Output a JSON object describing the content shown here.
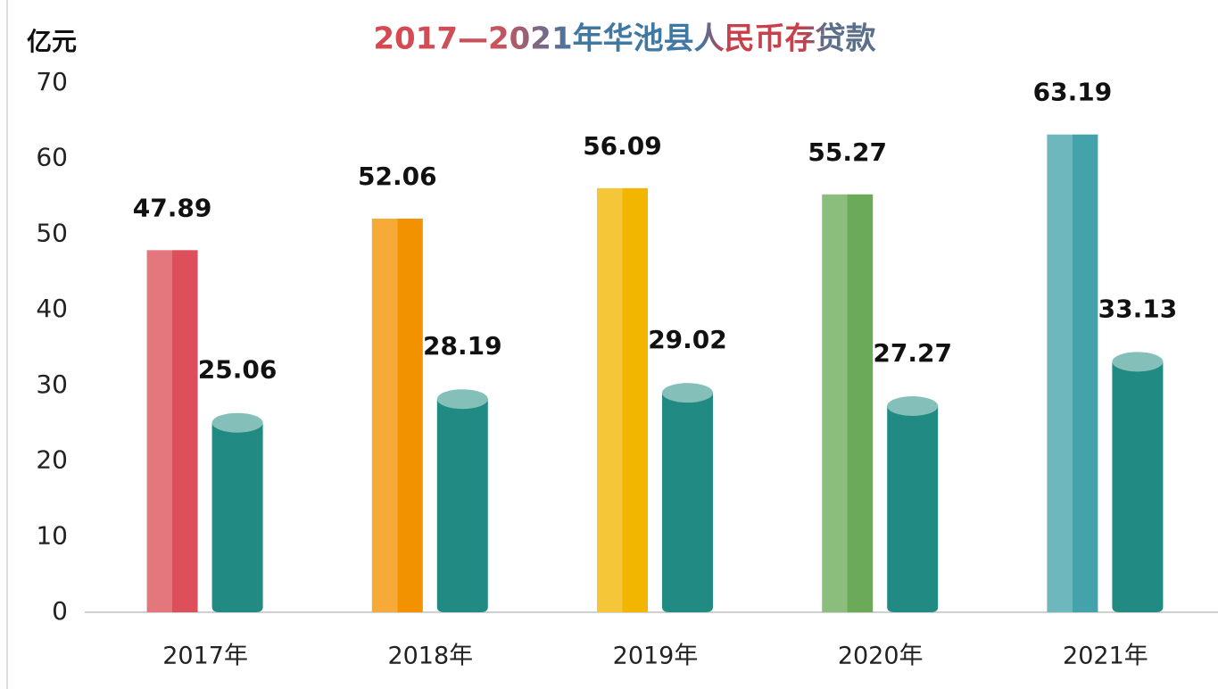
{
  "chart_data": {
    "type": "bar",
    "title": "2017—2021年华池县人民币存贷款",
    "y_label": "亿元",
    "categories": [
      "2017年",
      "2018年",
      "2019年",
      "2020年",
      "2021年"
    ],
    "series": [
      {
        "colors": [
          "#dd4f5a",
          "#f39200",
          "#f2b600",
          "#6aaa58",
          "#44a3aa"
        ],
        "values": [
          47.89,
          52.06,
          56.09,
          55.27,
          63.19
        ]
      },
      {
        "color": "#218a82",
        "values": [
          25.06,
          28.19,
          29.02,
          27.27,
          33.13
        ]
      }
    ],
    "ylim": [
      0,
      70
    ],
    "yticks": [
      0,
      10,
      20,
      30,
      40,
      50,
      60,
      70
    ],
    "grid": false
  }
}
